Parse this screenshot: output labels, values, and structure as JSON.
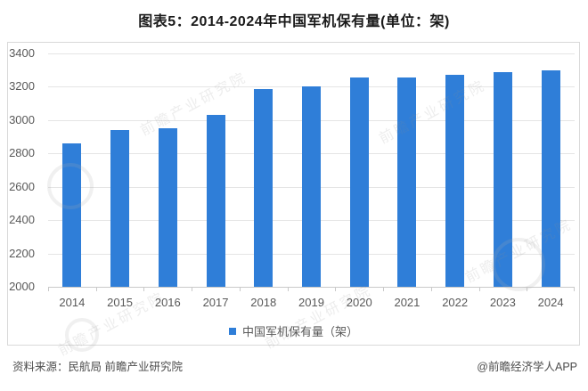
{
  "title": "图表5：2014-2024年中国军机保有量(单位：架)",
  "colors": {
    "bar": "#2f7ed8",
    "grid": "#e5e5e5",
    "axis": "#c9c9c9",
    "border": "#d9d9d9",
    "text": "#595959"
  },
  "chart_data": {
    "type": "bar",
    "title": "图表5：2014-2024年中国军机保有量(单位：架)",
    "categories": [
      "2014",
      "2015",
      "2016",
      "2017",
      "2018",
      "2019",
      "2020",
      "2021",
      "2022",
      "2023",
      "2024"
    ],
    "values": [
      2860,
      2940,
      2950,
      3030,
      3185,
      3205,
      3255,
      3255,
      3270,
      3290,
      3300
    ],
    "series_name": "中国军机保有量（架）",
    "unit": "架",
    "xlabel": "",
    "ylabel": "",
    "ylim": [
      2000,
      3400
    ],
    "yticks": [
      3400,
      3200,
      3000,
      2800,
      2600,
      2400,
      2200,
      2000
    ],
    "grid": true,
    "legend_position": "bottom"
  },
  "legend": {
    "label": "中国军机保有量（架）"
  },
  "footer": {
    "source": "资料来源：民航局 前瞻产业研究院",
    "brand": "@前瞻经济学人APP"
  },
  "watermark": {
    "text": "前瞻产业研究院"
  }
}
